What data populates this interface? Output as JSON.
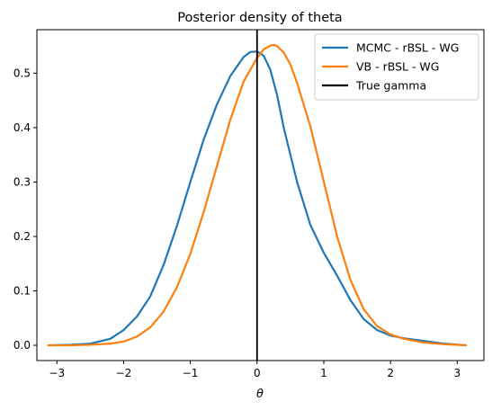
{
  "chart_data": {
    "type": "line",
    "title": "Posterior density of theta",
    "xlabel": "θ",
    "ylabel": "",
    "xlim": [
      -3.3,
      3.4
    ],
    "ylim": [
      -0.028,
      0.58
    ],
    "xticks": [
      -3,
      -2,
      -1,
      0,
      1,
      2,
      3
    ],
    "xtick_labels": [
      "−3",
      "−2",
      "−1",
      "0",
      "1",
      "2",
      "3"
    ],
    "yticks": [
      0.0,
      0.1,
      0.2,
      0.3,
      0.4,
      0.5
    ],
    "ytick_labels": [
      "0.0",
      "0.1",
      "0.2",
      "0.3",
      "0.4",
      "0.5"
    ],
    "grid": false,
    "legend_position": "upper right",
    "series": [
      {
        "name": "MCMC - rBSL - WG",
        "color": "#1f77b4",
        "x": [
          -3.14,
          -2.8,
          -2.5,
          -2.2,
          -2.0,
          -1.8,
          -1.6,
          -1.4,
          -1.2,
          -1.0,
          -0.8,
          -0.6,
          -0.4,
          -0.2,
          -0.1,
          0.0,
          0.1,
          0.2,
          0.3,
          0.4,
          0.6,
          0.8,
          1.0,
          1.2,
          1.4,
          1.6,
          1.8,
          2.0,
          2.2,
          2.5,
          2.8,
          3.14
        ],
        "y": [
          0.0,
          0.001,
          0.003,
          0.012,
          0.028,
          0.053,
          0.09,
          0.148,
          0.22,
          0.3,
          0.378,
          0.443,
          0.495,
          0.53,
          0.539,
          0.54,
          0.532,
          0.506,
          0.46,
          0.4,
          0.3,
          0.221,
          0.17,
          0.128,
          0.083,
          0.048,
          0.028,
          0.018,
          0.013,
          0.008,
          0.003,
          0.0
        ]
      },
      {
        "name": "VB - rBSL - WG",
        "color": "#ff7f0e",
        "x": [
          -3.14,
          -2.8,
          -2.5,
          -2.2,
          -2.0,
          -1.8,
          -1.6,
          -1.4,
          -1.2,
          -1.0,
          -0.8,
          -0.6,
          -0.4,
          -0.2,
          0.0,
          0.1,
          0.2,
          0.25,
          0.3,
          0.4,
          0.5,
          0.6,
          0.8,
          1.0,
          1.2,
          1.4,
          1.6,
          1.8,
          2.0,
          2.2,
          2.5,
          2.8,
          3.14
        ],
        "y": [
          0.0,
          0.0,
          0.001,
          0.003,
          0.007,
          0.016,
          0.033,
          0.062,
          0.107,
          0.168,
          0.245,
          0.33,
          0.415,
          0.485,
          0.528,
          0.544,
          0.551,
          0.552,
          0.55,
          0.538,
          0.516,
          0.482,
          0.402,
          0.301,
          0.2,
          0.12,
          0.066,
          0.035,
          0.02,
          0.012,
          0.005,
          0.002,
          0.0
        ]
      }
    ],
    "vlines": [
      {
        "name": "True gamma",
        "x": 0.0,
        "color": "#000000"
      }
    ]
  }
}
